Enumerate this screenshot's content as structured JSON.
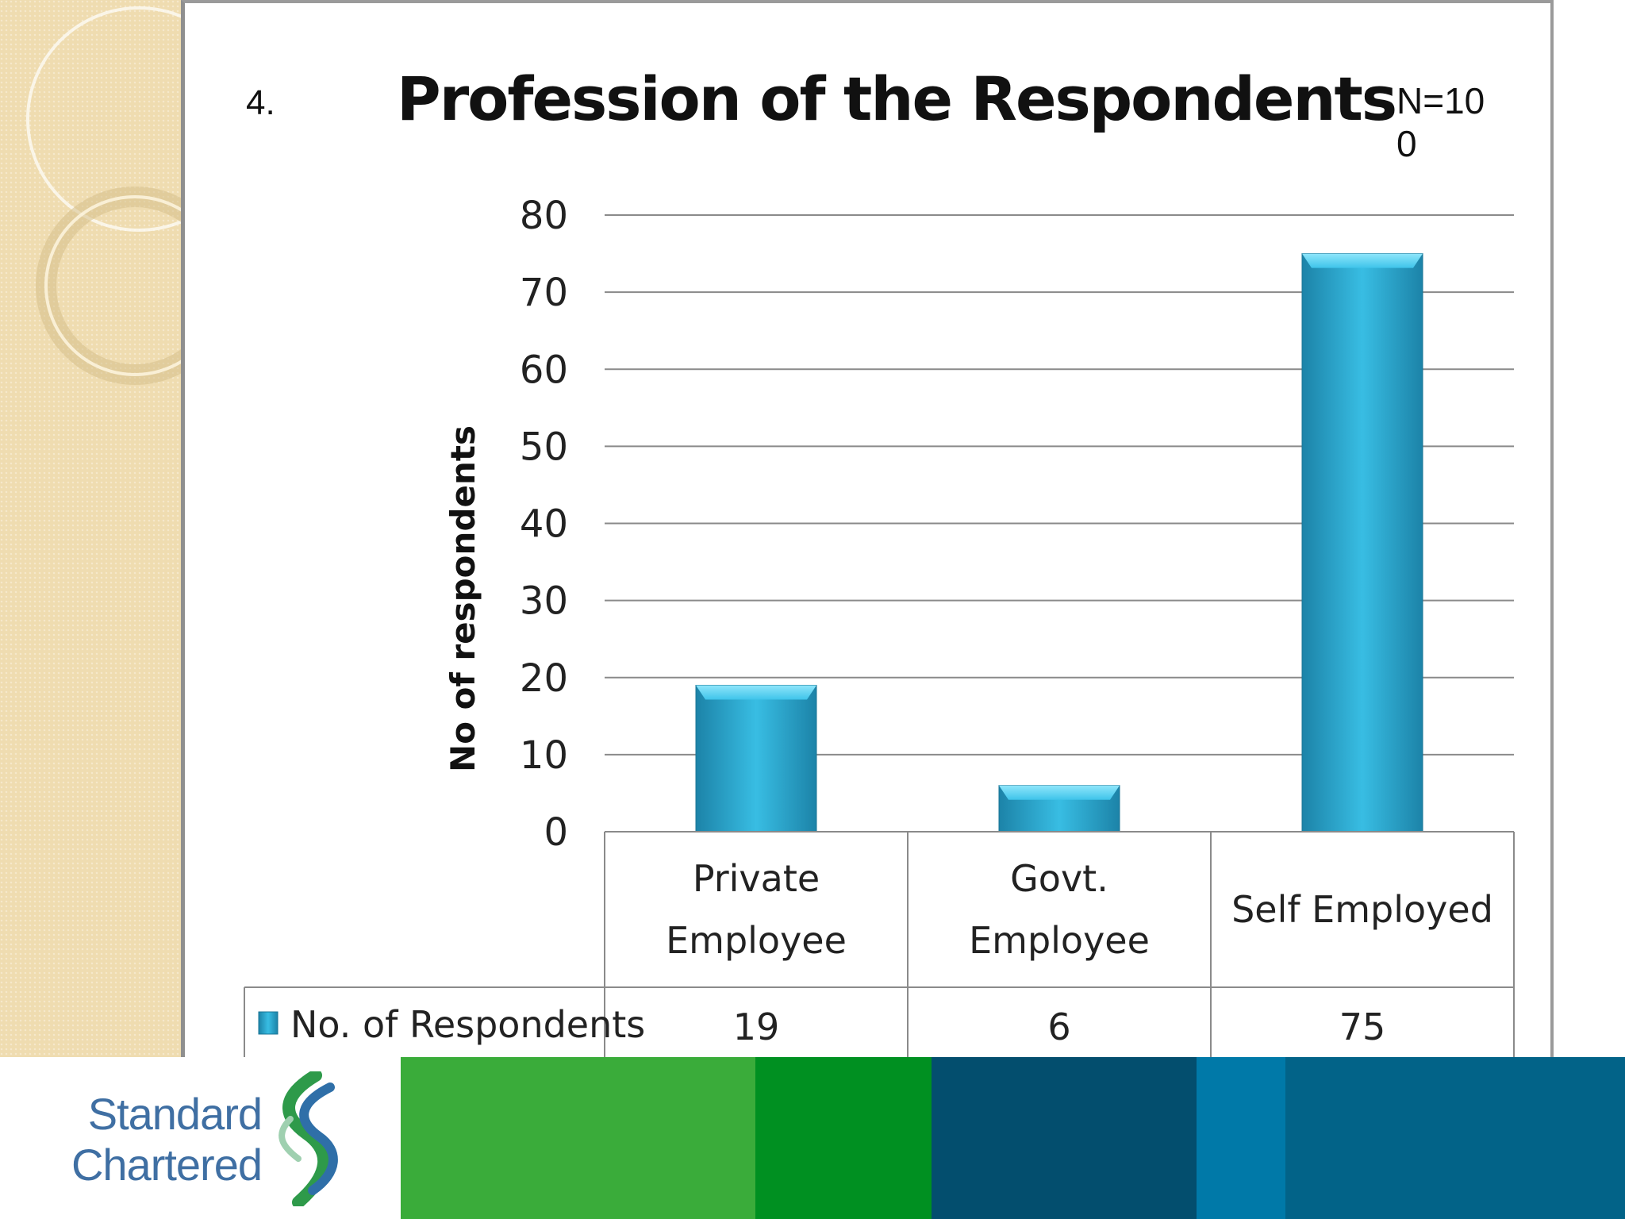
{
  "slide": {
    "number": "4.",
    "sample_size": "N=100"
  },
  "chart_data": {
    "type": "bar",
    "title": "Profession of the Respondents",
    "ylabel": "No of respondents",
    "xlabel": "",
    "ylim": [
      0,
      80
    ],
    "yticks": [
      0,
      10,
      20,
      30,
      40,
      50,
      60,
      70,
      80
    ],
    "categories": [
      [
        "Private",
        "Employee"
      ],
      [
        "Govt.",
        "Employee"
      ],
      [
        "Self Employed"
      ]
    ],
    "series": [
      {
        "name": "No. of Respondents",
        "values": [
          19,
          6,
          75
        ],
        "color": "#2fa8d0"
      }
    ],
    "data_table": true,
    "grid": true,
    "legend": "in data table"
  },
  "footer": {
    "logo_text": [
      "Standard",
      "Chartered"
    ],
    "colors": [
      "#3aac3a",
      "#009021",
      "#034e6e",
      "#0079a8",
      "#026388"
    ]
  }
}
